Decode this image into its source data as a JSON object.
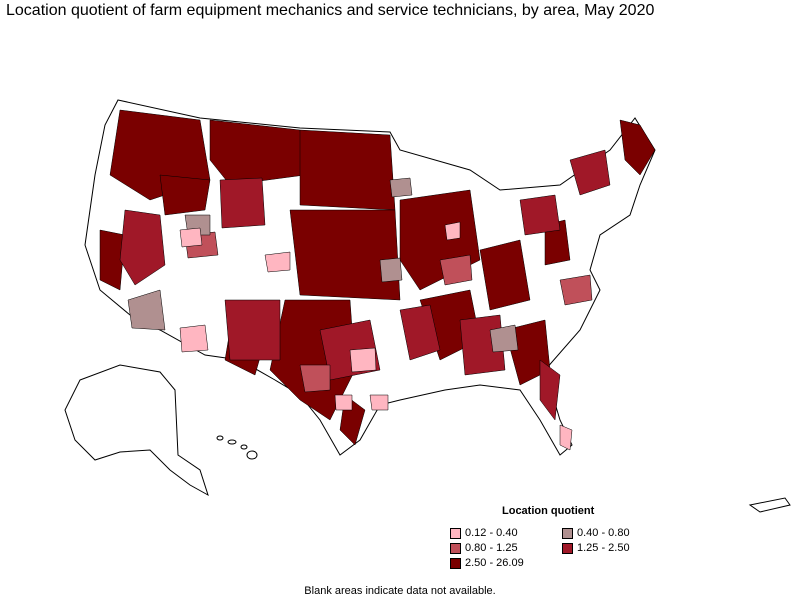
{
  "title": "Location quotient of farm equipment mechanics and service technicians, by area, May 2020",
  "legend": {
    "title": "Location quotient",
    "items": [
      {
        "label": "0.12 - 0.40",
        "color": "#ffb6c1"
      },
      {
        "label": "0.40 - 0.80",
        "color": "#b09090"
      },
      {
        "label": "0.80 - 1.25",
        "color": "#c0505a"
      },
      {
        "label": "1.25 - 2.50",
        "color": "#a01828"
      },
      {
        "label": "2.50 - 26.09",
        "color": "#7a0000"
      }
    ]
  },
  "note": "Blank areas indicate data not available."
}
